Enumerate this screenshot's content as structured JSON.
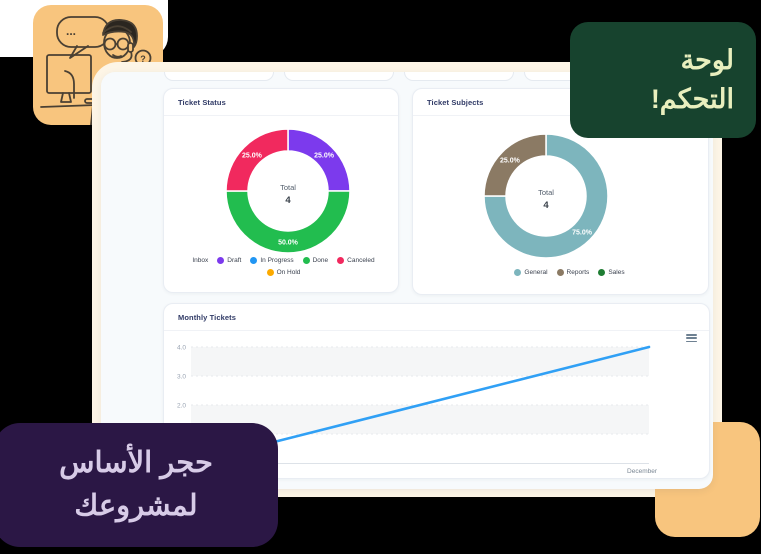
{
  "badges": {
    "dashboard": {
      "text": "لوحة التحكم!",
      "bg": "#17432e",
      "fg": "#e9efbe"
    },
    "foundation": {
      "text": "حجر الأساس لمشروعك",
      "bg": "#2b1745",
      "fg": "#d7cbe7"
    }
  },
  "illustration": {
    "bubble_dots": "...",
    "question_mark": "?"
  },
  "colors": {
    "canvas_bg": "#000000",
    "backdrop_cream": "#fdf5e6",
    "accent_orange": "#f8c57e",
    "dashboard_bg": "#f7fafc",
    "title_navy": "#303a66",
    "line_blue": "#30a0f5"
  },
  "chart_data": [
    {
      "type": "pie",
      "subtype": "donut",
      "title": "Ticket Status",
      "center_label": "Total",
      "center_value": "4",
      "slices": [
        {
          "label": "Draft",
          "pct": 25.0,
          "data_label": "25.0%",
          "color": "#7c3aed"
        },
        {
          "label": "Done",
          "pct": 50.0,
          "data_label": "50.0%",
          "color": "#22bd4f"
        },
        {
          "label": "Canceled",
          "pct": 25.0,
          "data_label": "25.0%",
          "color": "#f1295e"
        }
      ],
      "legend": [
        {
          "label": "Inbox",
          "color": null
        },
        {
          "label": "Draft",
          "color": "#7c3aed"
        },
        {
          "label": "In Progress",
          "color": "#2196f3"
        },
        {
          "label": "Done",
          "color": "#22bd4f"
        },
        {
          "label": "Canceled",
          "color": "#f1295e"
        },
        {
          "label": "On Hold",
          "color": "#fcaa00"
        }
      ],
      "legend_position": "bottom"
    },
    {
      "type": "pie",
      "subtype": "donut",
      "title": "Ticket Subjects",
      "center_label": "Total",
      "center_value": "4",
      "slices": [
        {
          "label": "General",
          "pct": 75.0,
          "data_label": "75.0%",
          "color": "#7db5bd"
        },
        {
          "label": "Reports",
          "pct": 25.0,
          "data_label": "25.0%",
          "color": "#8b7a64"
        }
      ],
      "legend": [
        {
          "label": "General",
          "color": "#7db5bd"
        },
        {
          "label": "Reports",
          "color": "#8b7a64"
        },
        {
          "label": "Sales",
          "color": "#1f7d33"
        }
      ],
      "legend_position": "bottom"
    },
    {
      "type": "line",
      "title": "Monthly Tickets",
      "yticks": [
        "4.0",
        "3.0",
        "2.0"
      ],
      "ylim": [
        0,
        4
      ],
      "x_tick_labels_visible": [
        "December"
      ],
      "december_label": "December",
      "grid": "horizontal-bands",
      "series": [
        {
          "name": "Tickets",
          "color": "#30a0f5",
          "points": [
            [
              0,
              0
            ],
            [
              1,
              4
            ]
          ]
        }
      ]
    }
  ]
}
